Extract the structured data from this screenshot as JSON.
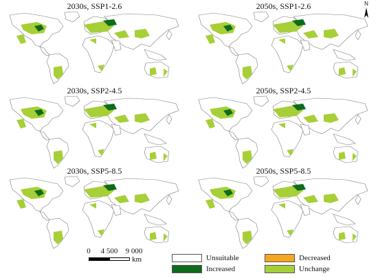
{
  "panels": [
    {
      "title": "2030s, SSP1-2.6"
    },
    {
      "title": "2050s, SSP1-2.6"
    },
    {
      "title": "2030s, SSP2-4.5"
    },
    {
      "title": "2050s, SSP2-4.5"
    },
    {
      "title": "2030s, SSP5-8.5"
    },
    {
      "title": "2050s, SSP5-8.5"
    }
  ],
  "north_arrow": {
    "label": "N"
  },
  "scale_bar": {
    "ticks": [
      "0",
      "4 500",
      "9 000"
    ],
    "unit": "km"
  },
  "legend": {
    "unsuitable": {
      "label": "Unsuitable",
      "color": "#ffffff"
    },
    "decreased": {
      "label": "Decreased",
      "color": "#f5a623"
    },
    "increased": {
      "label": "Increased",
      "color": "#0e6b1c"
    },
    "unchange": {
      "label": "Unchange",
      "color": "#a6cf38"
    }
  },
  "colors": {
    "outline": "#7a7a7a",
    "increased": "#0e6b1c",
    "unchange": "#a6cf38"
  }
}
